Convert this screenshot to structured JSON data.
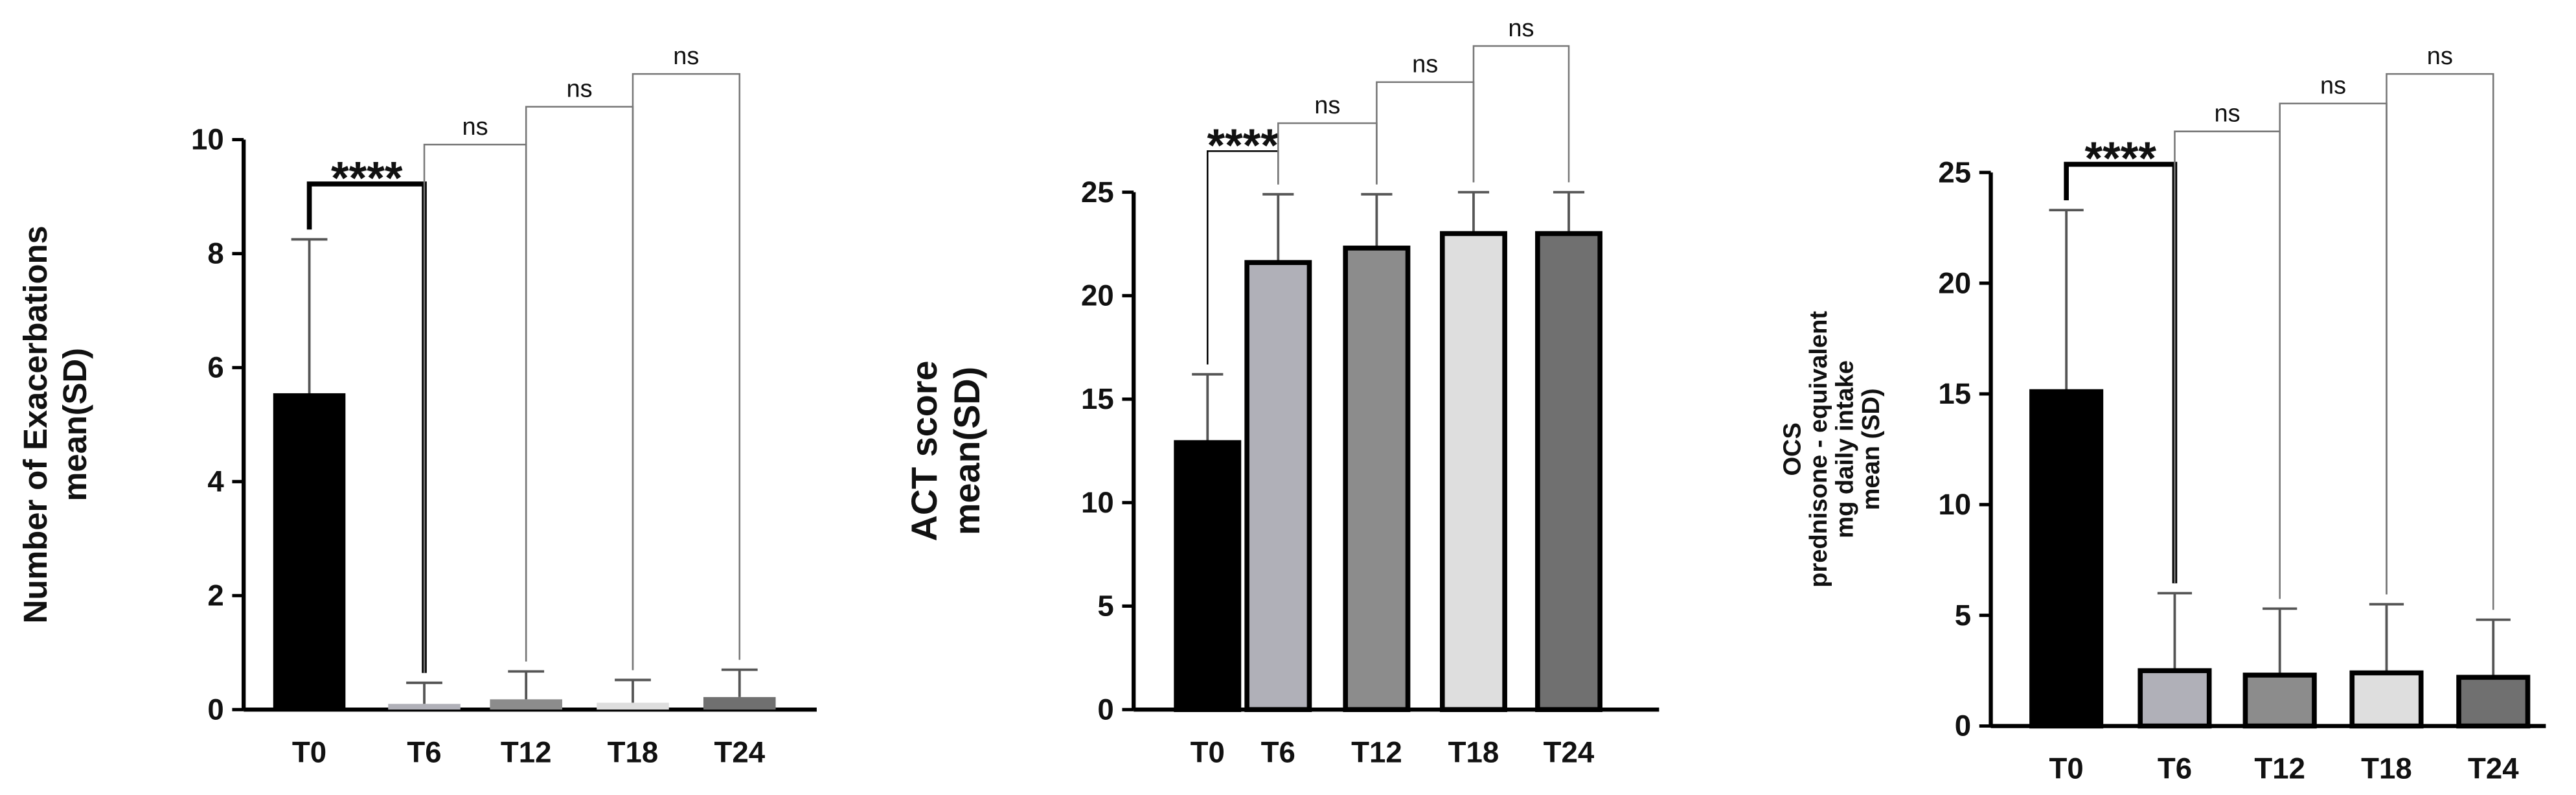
{
  "chart_data": [
    {
      "type": "bar",
      "y_label": [
        "Number of Exacerbations",
        "mean(SD)"
      ],
      "categories": [
        "T0",
        "T6",
        "T12",
        "T18",
        "T24"
      ],
      "values": [
        5.55,
        0.1,
        0.18,
        0.12,
        0.22
      ],
      "errors": [
        2.7,
        0.37,
        0.49,
        0.4,
        0.48
      ],
      "colors": [
        "#000000",
        "#b0b0b8",
        "#8c8c8c",
        "#dedede",
        "#707070"
      ],
      "ylim": [
        0,
        10
      ],
      "yticks": [
        0,
        2,
        4,
        6,
        8,
        10
      ],
      "annotations": [
        "****",
        "ns",
        "ns",
        "ns"
      ]
    },
    {
      "type": "bar",
      "y_label": [
        "ACT score",
        "mean(SD)"
      ],
      "categories": [
        "T0",
        "T6",
        "T12",
        "T18",
        "T24"
      ],
      "values": [
        12.9,
        21.6,
        22.3,
        23.0,
        23.0
      ],
      "errors": [
        3.3,
        3.3,
        2.6,
        2.0,
        2.0
      ],
      "colors": [
        "#000000",
        "#b0b0b8",
        "#8c8c8c",
        "#dedede",
        "#707070"
      ],
      "ylim": [
        0,
        25
      ],
      "yticks": [
        0,
        5,
        10,
        15,
        20,
        25
      ],
      "annotations": [
        "****",
        "ns",
        "ns",
        "ns"
      ]
    },
    {
      "type": "bar",
      "y_label": [
        "OCS",
        "prednisone - equivalent",
        "mg daily intake",
        "mean (SD)"
      ],
      "categories": [
        "T0",
        "T6",
        "T12",
        "T18",
        "T24"
      ],
      "values": [
        15.1,
        2.5,
        2.3,
        2.4,
        2.2
      ],
      "errors": [
        8.2,
        3.5,
        3.0,
        3.1,
        2.6
      ],
      "colors": [
        "#000000",
        "#b0b0b8",
        "#8c8c8c",
        "#dedede",
        "#707070"
      ],
      "ylim": [
        0,
        25
      ],
      "yticks": [
        0,
        5,
        10,
        15,
        20,
        25
      ],
      "annotations": [
        "****",
        "ns",
        "ns",
        "ns"
      ]
    }
  ]
}
